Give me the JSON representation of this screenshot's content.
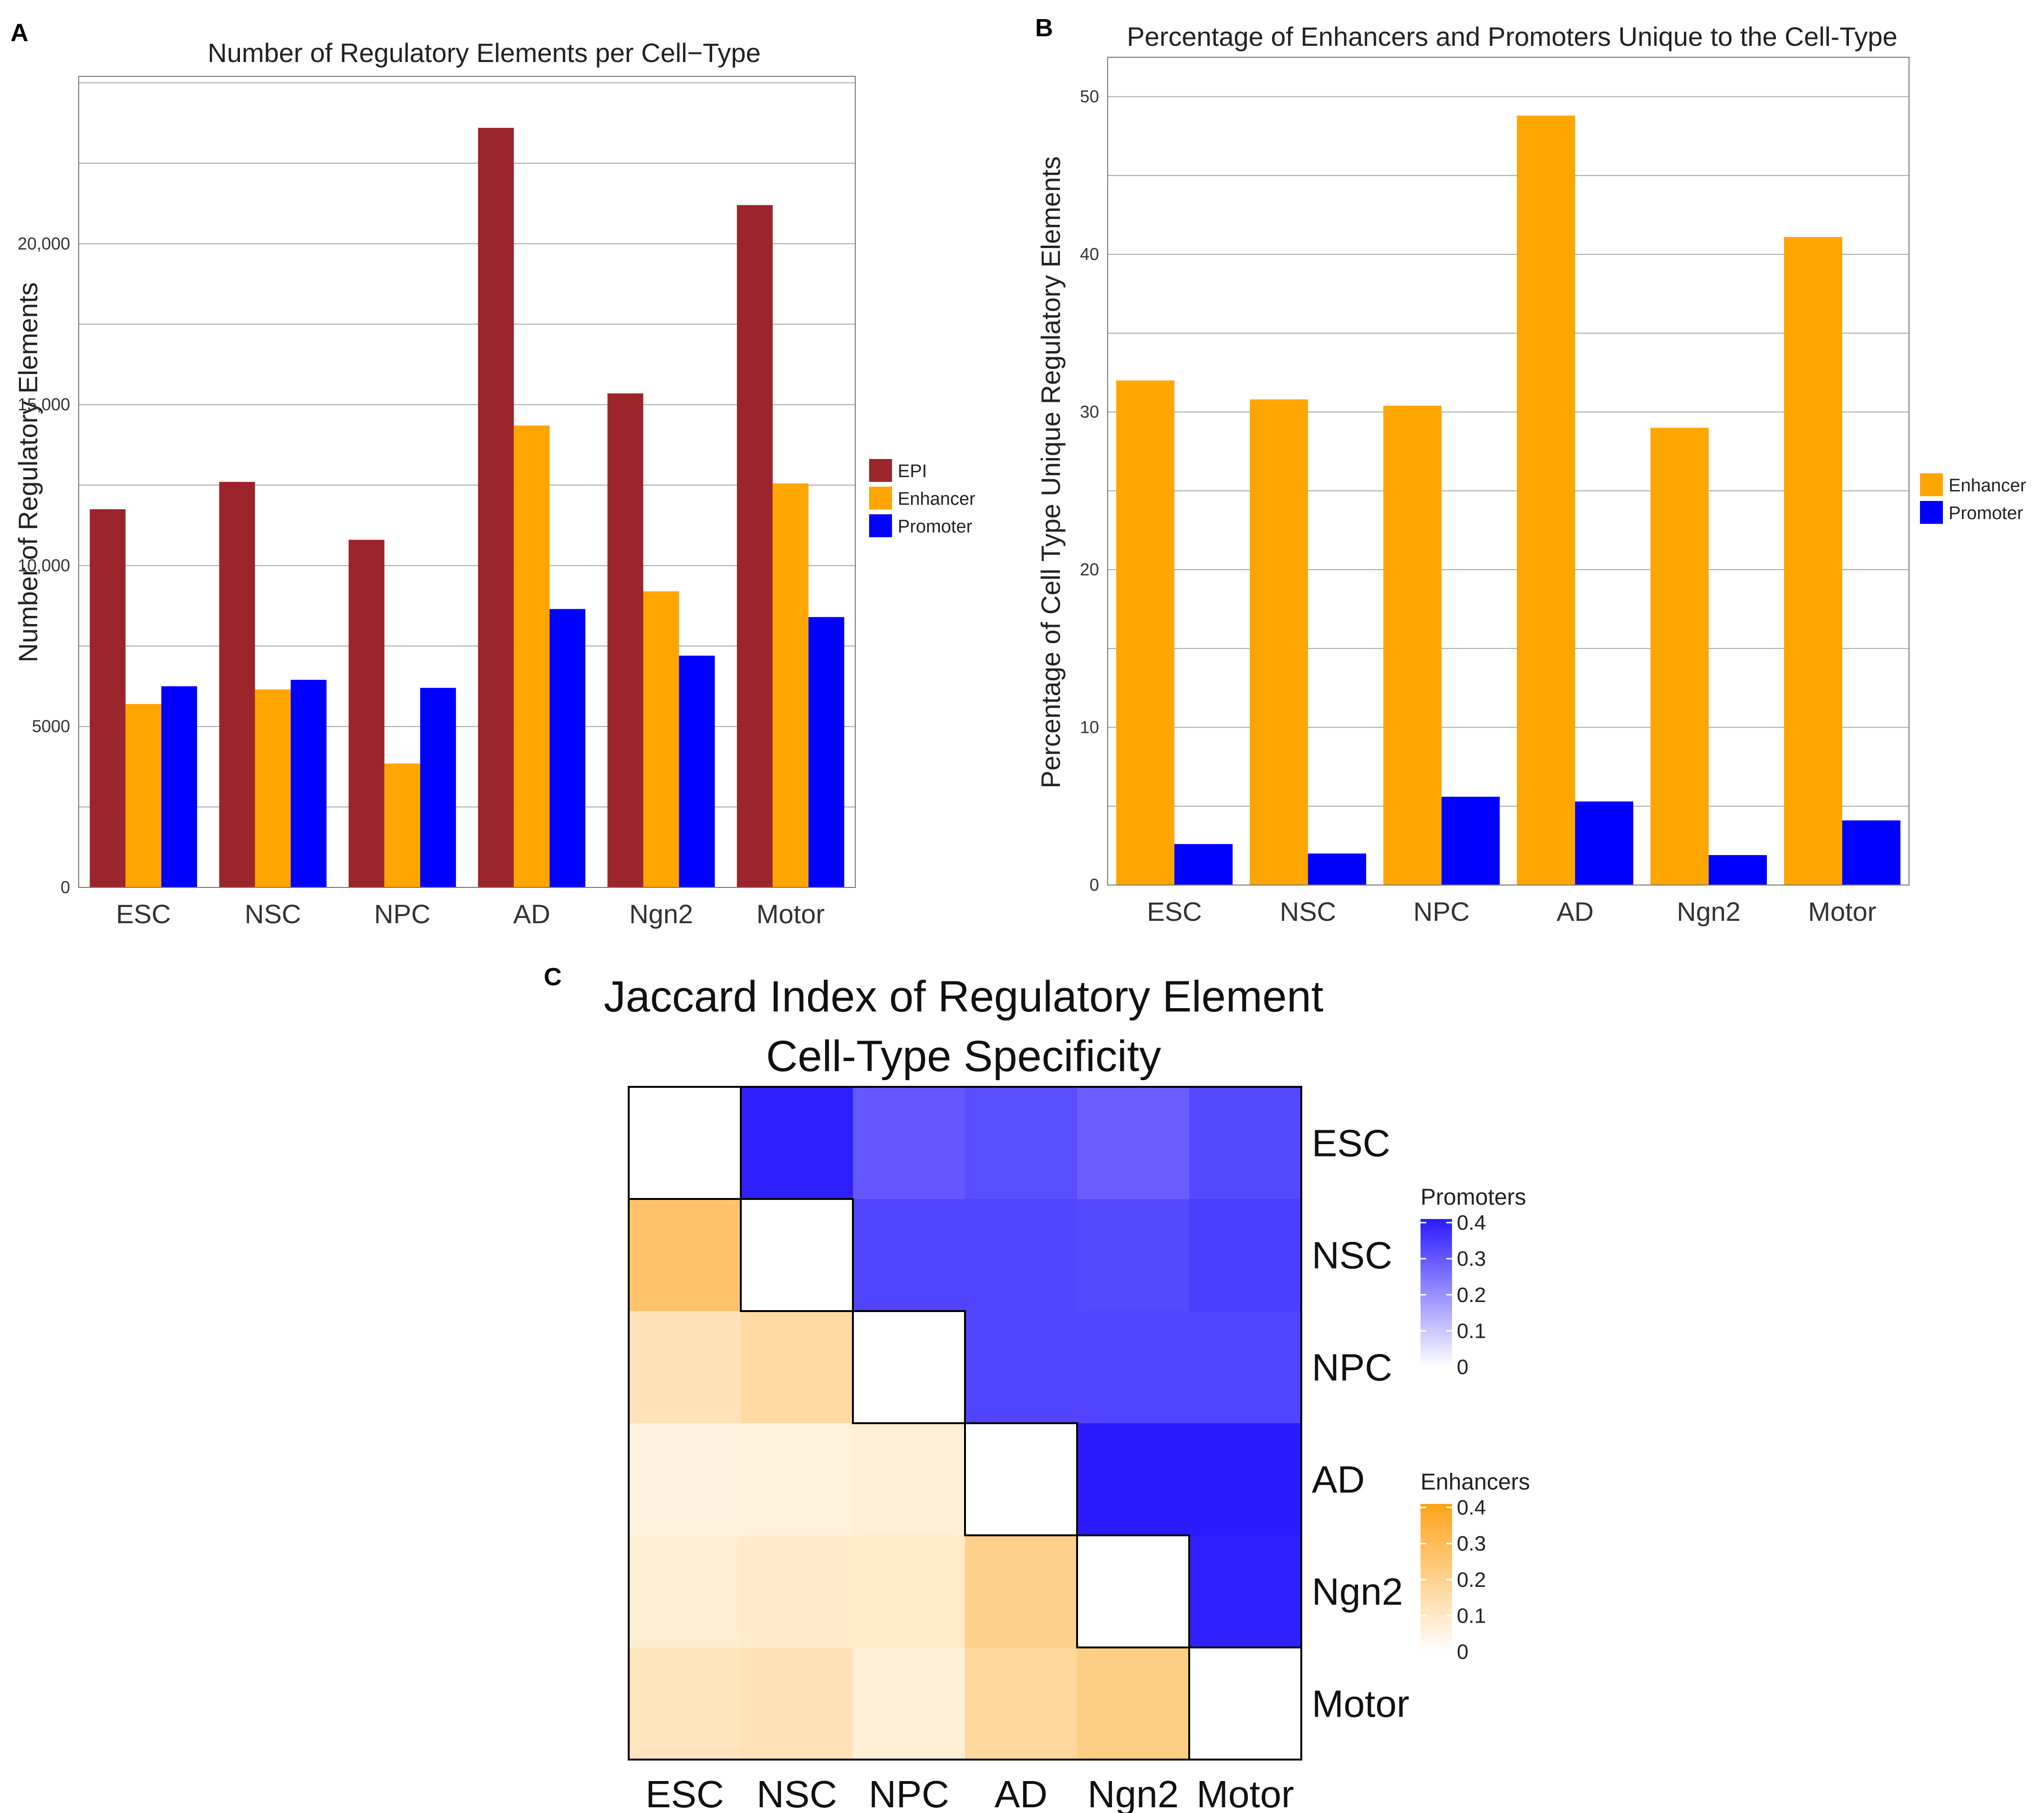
{
  "panels": {
    "a_letter": "A",
    "b_letter": "B",
    "c_letter": "C"
  },
  "chart_data": [
    {
      "id": "A",
      "type": "bar",
      "title": "Number of Regulatory Elements per Cell−Type",
      "xlabel": "",
      "ylabel": "Number of Regulatory Elements",
      "ylim": [
        0,
        25200
      ],
      "yticks": [
        0,
        5000,
        10000,
        15000,
        20000
      ],
      "ytick_labels": [
        "0",
        "5000",
        "10,000",
        "15,000",
        "20,000"
      ],
      "grid": true,
      "categories": [
        "ESC",
        "NSC",
        "NPC",
        "AD",
        "Ngn2",
        "Motor"
      ],
      "series": [
        {
          "name": "EPI",
          "color": "#9b252a",
          "values": [
            11750,
            12600,
            10800,
            23600,
            15350,
            21200
          ]
        },
        {
          "name": "Enhancer",
          "color": "#ffa500",
          "values": [
            5700,
            6150,
            3850,
            14350,
            9200,
            12550
          ]
        },
        {
          "name": "Promoter",
          "color": "#0000ff",
          "values": [
            6250,
            6450,
            6200,
            8650,
            7200,
            8400
          ]
        }
      ],
      "legend_position": "right"
    },
    {
      "id": "B",
      "type": "bar",
      "title": "Percentage of Enhancers and Promoters Unique to the Cell-Type",
      "xlabel": "",
      "ylabel": "Percentage of Cell Type Unique Regulatory Elements",
      "ylim": [
        0,
        52.5
      ],
      "yticks": [
        0,
        10,
        20,
        30,
        40,
        50
      ],
      "ytick_labels": [
        "0",
        "10",
        "20",
        "30",
        "40",
        "50"
      ],
      "grid": true,
      "categories": [
        "ESC",
        "NSC",
        "NPC",
        "AD",
        "Ngn2",
        "Motor"
      ],
      "series": [
        {
          "name": "Enhancer",
          "color": "#ffa500",
          "values": [
            32.0,
            30.8,
            30.4,
            48.8,
            29.0,
            41.1
          ]
        },
        {
          "name": "Promoter",
          "color": "#0000ff",
          "values": [
            2.6,
            2.0,
            5.6,
            5.3,
            1.9,
            4.1
          ]
        }
      ],
      "legend_position": "right"
    },
    {
      "id": "C",
      "type": "heatmap",
      "title": "Jaccard Index of Regulatory Element Cell-Type Specificity",
      "title_lines": [
        "Jaccard Index of Regulatory Element",
        "Cell-Type Specificity"
      ],
      "rows": [
        "ESC",
        "NSC",
        "NPC",
        "AD",
        "Ngn2",
        "Motor"
      ],
      "columns": [
        "ESC",
        "NSC",
        "NPC",
        "AD",
        "Ngn2",
        "Motor"
      ],
      "upper_triangle_measure": "Promoters",
      "lower_triangle_measure": "Enhancers",
      "values": [
        [
          null,
          0.44,
          0.33,
          0.35,
          0.32,
          0.36
        ],
        [
          0.29,
          null,
          0.37,
          0.37,
          0.36,
          0.38
        ],
        [
          0.14,
          0.18,
          null,
          0.37,
          0.37,
          0.37
        ],
        [
          0.06,
          0.07,
          0.08,
          null,
          0.47,
          0.47
        ],
        [
          0.09,
          0.1,
          0.11,
          0.23,
          null,
          0.44
        ],
        [
          0.13,
          0.14,
          0.08,
          0.19,
          0.24,
          null
        ]
      ],
      "colorbars": [
        {
          "name": "Promoters",
          "color": "#2a1bff",
          "ticks": [
            0,
            0.1,
            0.2,
            0.3,
            0.4
          ],
          "tick_labels": [
            "0",
            "0.1",
            "0.2",
            "0.3",
            "0.4"
          ]
        },
        {
          "name": "Enhancers",
          "color": "#ffa31a",
          "ticks": [
            0,
            0.1,
            0.2,
            0.3,
            0.4
          ],
          "tick_labels": [
            "0",
            "0.1",
            "0.2",
            "0.3",
            "0.4"
          ]
        }
      ]
    }
  ]
}
